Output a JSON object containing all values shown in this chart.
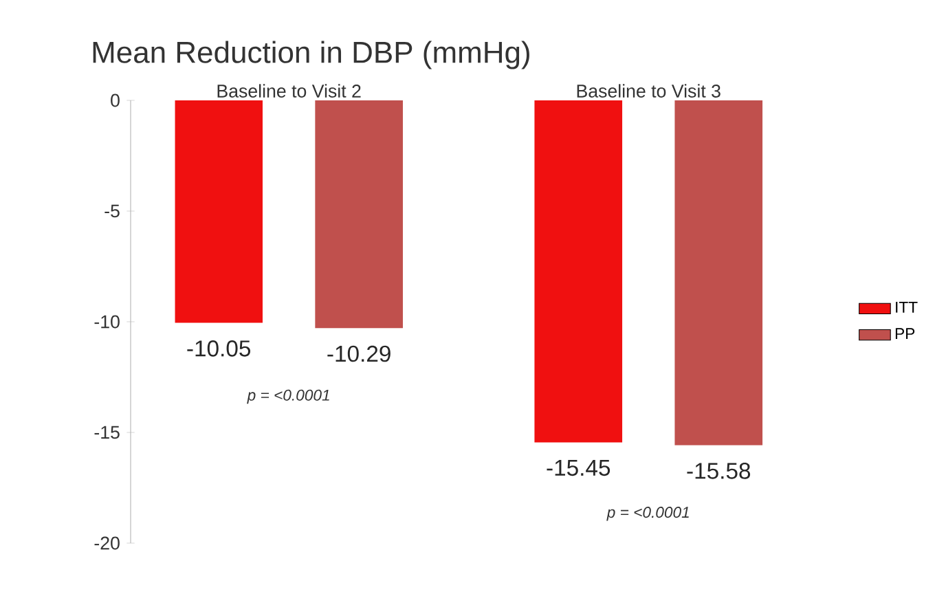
{
  "chart_data": {
    "type": "bar",
    "title": "Mean Reduction in DBP (mmHg)",
    "categories": [
      "Baseline to Visit 2",
      "Baseline to Visit 3"
    ],
    "series": [
      {
        "name": "ITT",
        "color": "#f01010",
        "values": [
          -10.05,
          -15.45
        ],
        "value_labels": [
          "-10.05",
          "-15.45"
        ]
      },
      {
        "name": "PP",
        "color": "#c0504d",
        "values": [
          -10.29,
          -15.58
        ],
        "value_labels": [
          "-10.29",
          "-15.58"
        ]
      }
    ],
    "ylim": [
      -20,
      0
    ],
    "yticks": [
      -20,
      -15,
      -10,
      -5,
      0
    ],
    "grid": false,
    "legend": "right",
    "annotations": [
      "p = <0.0001",
      "p = <0.0001"
    ]
  }
}
